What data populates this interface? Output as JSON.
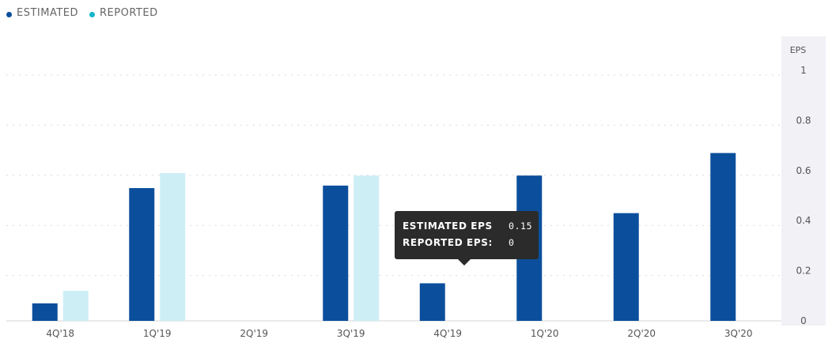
{
  "legend": {
    "estimated_label": "ESTIMATED",
    "reported_label": "REPORTED",
    "estimated_color": "#0b4f9c",
    "reported_color": "#17b6cc",
    "reported_bar_color": "#cdeef5"
  },
  "tooltip": {
    "estimated_label": "ESTIMATED EPS",
    "estimated_value": "0.15",
    "reported_label": "REPORTED EPS:",
    "reported_value": "0"
  },
  "chart_data": {
    "type": "bar",
    "categories": [
      "4Q'18",
      "1Q'19",
      "2Q'19",
      "3Q'19",
      "4Q'19",
      "1Q'20",
      "2Q'20",
      "3Q'20"
    ],
    "series": [
      {
        "name": "ESTIMATED",
        "values": [
          0.07,
          0.53,
          null,
          0.54,
          0.15,
          0.58,
          0.43,
          0.67
        ]
      },
      {
        "name": "REPORTED",
        "values": [
          0.12,
          0.59,
          null,
          0.58,
          null,
          null,
          null,
          null
        ]
      }
    ],
    "ylabel": "EPS",
    "yticks": [
      "0",
      "0.2",
      "0.4",
      "0.6",
      "0.8",
      "1"
    ],
    "ylim": [
      0,
      1
    ],
    "grid": true,
    "legend_position": "top-left"
  }
}
